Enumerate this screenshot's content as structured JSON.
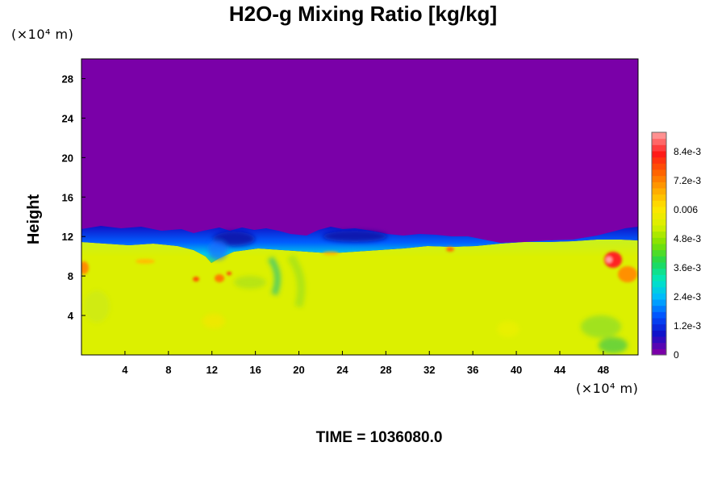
{
  "chart_data": {
    "type": "heatmap",
    "title": "H2O-g Mixing Ratio [kg/kg]",
    "ylabel": "Height",
    "x_unit": "(×10⁴ m)",
    "y_unit": "(×10⁴ m)",
    "x_ticks": [
      "4",
      "8",
      "12",
      "16",
      "20",
      "24",
      "28",
      "32",
      "36",
      "40",
      "44",
      "48"
    ],
    "y_ticks": [
      "4",
      "8",
      "12",
      "16",
      "20",
      "24",
      "28"
    ],
    "xlim": [
      0,
      51.2
    ],
    "ylim": [
      0,
      30
    ],
    "colorbar": {
      "labels": [
        "0",
        "1.2e-3",
        "2.4e-3",
        "3.6e-3",
        "4.8e-3",
        "0.006",
        "7.2e-3",
        "8.4e-3"
      ],
      "min": 0,
      "max": 0.0092,
      "colors": [
        "#7a00a8",
        "#1010c8",
        "#0050ff",
        "#00b8ff",
        "#00e8c0",
        "#20d850",
        "#7ce000",
        "#d8f000",
        "#ffe600",
        "#ffa800",
        "#ff6000",
        "#ff1818",
        "#ff9090"
      ]
    },
    "fields": {
      "upper_layer_value": 0,
      "lower_layer_value": 0.0061,
      "interface_height": 11.5
    },
    "time_label": "TIME = 1036080.0"
  }
}
